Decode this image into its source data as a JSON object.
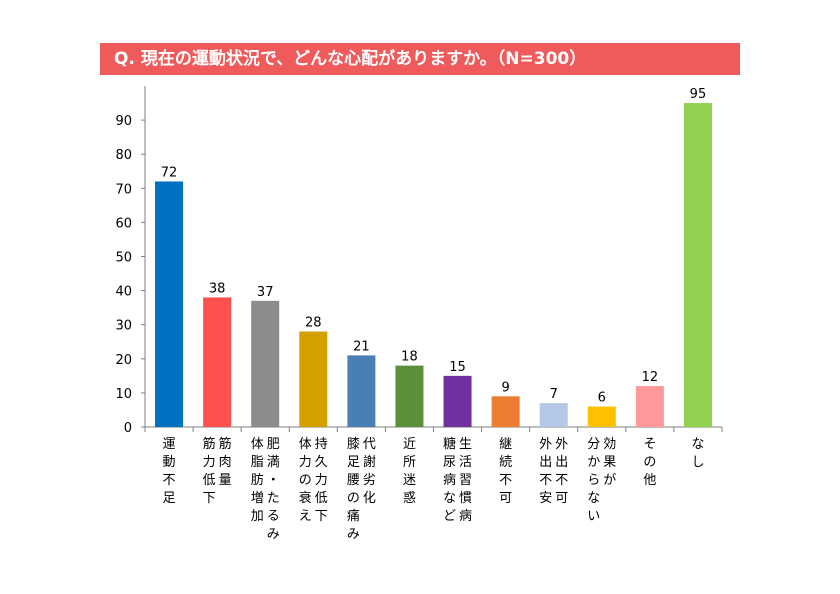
{
  "title": "Q.  現在の運動状況で、どんな心配がありますか。（N=300）",
  "chart_data": {
    "type": "bar",
    "title": "Q.  現在の運動状況で、どんな心配がありますか。（N=300）",
    "categories": [
      [
        "運動不足"
      ],
      [
        "筋肉量",
        "筋力低下"
      ],
      [
        "肥満・たるみ",
        "体脂肪増加"
      ],
      [
        "持久力低下",
        "体力の衰え"
      ],
      [
        "代謝劣化",
        "膝足腰の痛み"
      ],
      [
        "近所迷惑"
      ],
      [
        "生活習慣病",
        "糖尿病など"
      ],
      [
        "継続不可"
      ],
      [
        "外出不可",
        "外出不安"
      ],
      [
        "効果が",
        "分からない"
      ],
      [
        "その他"
      ],
      [
        "なし"
      ]
    ],
    "values": [
      72,
      38,
      37,
      28,
      21,
      18,
      15,
      9,
      7,
      6,
      12,
      95
    ],
    "colors": [
      "#0070c0",
      "#ff5050",
      "#8c8c8c",
      "#d4a000",
      "#4a7fb5",
      "#5b8f3a",
      "#7030a0",
      "#ed7d31",
      "#b4c7e7",
      "#ffc000",
      "#ff9999",
      "#92d050"
    ],
    "yticks": [
      0,
      10,
      20,
      30,
      40,
      50,
      60,
      70,
      80,
      90
    ],
    "ylim": [
      0,
      100
    ],
    "xlabel": "",
    "ylabel": "",
    "grid": false,
    "legend": "none"
  }
}
